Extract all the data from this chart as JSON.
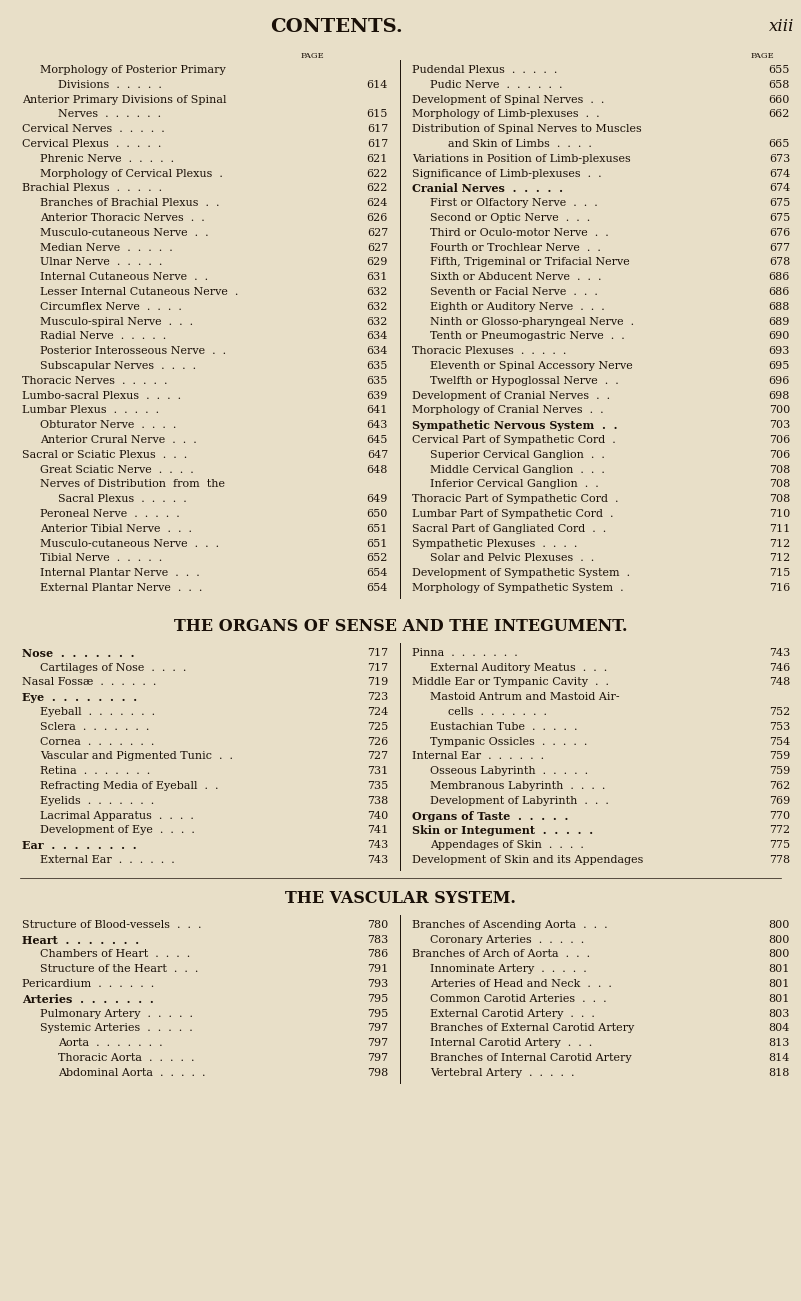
{
  "bg_color": "#e8dfc8",
  "text_color": "#1a1008",
  "title": "CONTENTS.",
  "page_num": "xiii",
  "figsize": [
    8.01,
    13.01
  ],
  "dpi": 100,
  "left_col": [
    {
      "text": "Morphology of Posterior Primary",
      "indent": 1,
      "bold": false,
      "page": null
    },
    {
      "text": "Divisions  .  .  .  .  .",
      "indent": 2,
      "bold": false,
      "page": "614"
    },
    {
      "text": "Anterior Primary Divisions of Spinal",
      "indent": 0,
      "bold": false,
      "page": null
    },
    {
      "text": "Nerves  .  .  .  .  .  .",
      "indent": 2,
      "bold": false,
      "page": "615"
    },
    {
      "text": "Cervical Nerves  .  .  .  .  .",
      "indent": 0,
      "bold": false,
      "page": "617"
    },
    {
      "text": "Cervical Plexus  .  .  .  .  .",
      "indent": 0,
      "bold": false,
      "page": "617"
    },
    {
      "text": "Phrenic Nerve  .  .  .  .  .",
      "indent": 1,
      "bold": false,
      "page": "621"
    },
    {
      "text": "Morphology of Cervical Plexus  .",
      "indent": 1,
      "bold": false,
      "page": "622"
    },
    {
      "text": "Brachial Plexus  .  .  .  .  .",
      "indent": 0,
      "bold": false,
      "page": "622"
    },
    {
      "text": "Branches of Brachial Plexus  .  .",
      "indent": 1,
      "bold": false,
      "page": "624"
    },
    {
      "text": "Anterior Thoracic Nerves  .  .",
      "indent": 1,
      "bold": false,
      "page": "626"
    },
    {
      "text": "Musculo-cutaneous Nerve  .  .",
      "indent": 1,
      "bold": false,
      "page": "627"
    },
    {
      "text": "Median Nerve  .  .  .  .  .",
      "indent": 1,
      "bold": false,
      "page": "627"
    },
    {
      "text": "Ulnar Nerve  .  .  .  .  .",
      "indent": 1,
      "bold": false,
      "page": "629"
    },
    {
      "text": "Internal Cutaneous Nerve  .  .",
      "indent": 1,
      "bold": false,
      "page": "631"
    },
    {
      "text": "Lesser Internal Cutaneous Nerve  .",
      "indent": 1,
      "bold": false,
      "page": "632"
    },
    {
      "text": "Circumflex Nerve  .  .  .  .",
      "indent": 1,
      "bold": false,
      "page": "632"
    },
    {
      "text": "Musculo-spiral Nerve  .  .  .",
      "indent": 1,
      "bold": false,
      "page": "632"
    },
    {
      "text": "Radial Nerve  .  .  .  .  .",
      "indent": 1,
      "bold": false,
      "page": "634"
    },
    {
      "text": "Posterior Interosseous Nerve  .  .",
      "indent": 1,
      "bold": false,
      "page": "634"
    },
    {
      "text": "Subscapular Nerves  .  .  .  .",
      "indent": 1,
      "bold": false,
      "page": "635"
    },
    {
      "text": "Thoracic Nerves  .  .  .  .  .",
      "indent": 0,
      "bold": false,
      "page": "635"
    },
    {
      "text": "Lumbo-sacral Plexus  .  .  .  .",
      "indent": 0,
      "bold": false,
      "page": "639"
    },
    {
      "text": "Lumbar Plexus  .  .  .  .  .",
      "indent": 0,
      "bold": false,
      "page": "641"
    },
    {
      "text": "Obturator Nerve  .  .  .  .",
      "indent": 1,
      "bold": false,
      "page": "643"
    },
    {
      "text": "Anterior Crural Nerve  .  .  .",
      "indent": 1,
      "bold": false,
      "page": "645"
    },
    {
      "text": "Sacral or Sciatic Plexus  .  .  .",
      "indent": 0,
      "bold": false,
      "page": "647"
    },
    {
      "text": "Great Sciatic Nerve  .  .  .  .",
      "indent": 1,
      "bold": false,
      "page": "648"
    },
    {
      "text": "Nerves of Distribution  from  the",
      "indent": 1,
      "bold": false,
      "page": null
    },
    {
      "text": "Sacral Plexus  .  .  .  .  .",
      "indent": 2,
      "bold": false,
      "page": "649"
    },
    {
      "text": "Peroneal Nerve  .  .  .  .  .",
      "indent": 1,
      "bold": false,
      "page": "650"
    },
    {
      "text": "Anterior Tibial Nerve  .  .  .",
      "indent": 1,
      "bold": false,
      "page": "651"
    },
    {
      "text": "Musculo-cutaneous Nerve  .  .  .",
      "indent": 1,
      "bold": false,
      "page": "651"
    },
    {
      "text": "Tibial Nerve  .  .  .  .  .",
      "indent": 1,
      "bold": false,
      "page": "652"
    },
    {
      "text": "Internal Plantar Nerve  .  .  .",
      "indent": 1,
      "bold": false,
      "page": "654"
    },
    {
      "text": "External Plantar Nerve  .  .  .",
      "indent": 1,
      "bold": false,
      "page": "654"
    }
  ],
  "right_col": [
    {
      "text": "Pudendal Plexus  .  .  .  .  .",
      "indent": 0,
      "bold": false,
      "page": "655"
    },
    {
      "text": "Pudic Nerve  .  .  .  .  .  .",
      "indent": 1,
      "bold": false,
      "page": "658"
    },
    {
      "text": "Development of Spinal Nerves  .  .",
      "indent": 0,
      "bold": false,
      "page": "660"
    },
    {
      "text": "Morphology of Limb-plexuses  .  .",
      "indent": 0,
      "bold": false,
      "page": "662"
    },
    {
      "text": "Distribution of Spinal Nerves to Muscles",
      "indent": 0,
      "bold": false,
      "page": null
    },
    {
      "text": "and Skin of Limbs  .  .  .  .",
      "indent": 2,
      "bold": false,
      "page": "665"
    },
    {
      "text": "Variations in Position of Limb-plexuses",
      "indent": 0,
      "bold": false,
      "page": "673"
    },
    {
      "text": "Significance of Limb-plexuses  .  .",
      "indent": 0,
      "bold": false,
      "page": "674"
    },
    {
      "text": "Cranial Nerves  .  .  .  .  .",
      "indent": 0,
      "bold": true,
      "page": "674",
      "smallcaps": true
    },
    {
      "text": "First or Olfactory Nerve  .  .  .",
      "indent": 1,
      "bold": false,
      "page": "675"
    },
    {
      "text": "Second or Optic Nerve  .  .  .",
      "indent": 1,
      "bold": false,
      "page": "675"
    },
    {
      "text": "Third or Oculo-motor Nerve  .  .",
      "indent": 1,
      "bold": false,
      "page": "676"
    },
    {
      "text": "Fourth or Trochlear Nerve  .  .",
      "indent": 1,
      "bold": false,
      "page": "677"
    },
    {
      "text": "Fifth, Trigeminal or Trifacial Nerve",
      "indent": 1,
      "bold": false,
      "page": "678"
    },
    {
      "text": "Sixth or Abducent Nerve  .  .  .",
      "indent": 1,
      "bold": false,
      "page": "686"
    },
    {
      "text": "Seventh or Facial Nerve  .  .  .",
      "indent": 1,
      "bold": false,
      "page": "686"
    },
    {
      "text": "Eighth or Auditory Nerve  .  .  .",
      "indent": 1,
      "bold": false,
      "page": "688"
    },
    {
      "text": "Ninth or Glosso-pharyngeal Nerve  .",
      "indent": 1,
      "bold": false,
      "page": "689"
    },
    {
      "text": "Tenth or Pneumogastric Nerve  .  .",
      "indent": 1,
      "bold": false,
      "page": "690"
    },
    {
      "text": "Thoracic Plexuses  .  .  .  .  .",
      "indent": 0,
      "bold": false,
      "page": "693"
    },
    {
      "text": "Eleventh or Spinal Accessory Nerve",
      "indent": 1,
      "bold": false,
      "page": "695"
    },
    {
      "text": "Twelfth or Hypoglossal Nerve  .  .",
      "indent": 1,
      "bold": false,
      "page": "696"
    },
    {
      "text": "Development of Cranial Nerves  .  .",
      "indent": 0,
      "bold": false,
      "page": "698"
    },
    {
      "text": "Morphology of Cranial Nerves  .  .",
      "indent": 0,
      "bold": false,
      "page": "700"
    },
    {
      "text": "Sympathetic Nervous System  .  .",
      "indent": 0,
      "bold": true,
      "page": "703",
      "smallcaps": true
    },
    {
      "text": "Cervical Part of Sympathetic Cord  .",
      "indent": 0,
      "bold": false,
      "page": "706"
    },
    {
      "text": "Superior Cervical Ganglion  .  .",
      "indent": 1,
      "bold": false,
      "page": "706"
    },
    {
      "text": "Middle Cervical Ganglion  .  .  .",
      "indent": 1,
      "bold": false,
      "page": "708"
    },
    {
      "text": "Inferior Cervical Ganglion  .  .",
      "indent": 1,
      "bold": false,
      "page": "708"
    },
    {
      "text": "Thoracic Part of Sympathetic Cord  .",
      "indent": 0,
      "bold": false,
      "page": "708"
    },
    {
      "text": "Lumbar Part of Sympathetic Cord  .",
      "indent": 0,
      "bold": false,
      "page": "710"
    },
    {
      "text": "Sacral Part of Gangliated Cord  .  .",
      "indent": 0,
      "bold": false,
      "page": "711"
    },
    {
      "text": "Sympathetic Plexuses  .  .  .  .",
      "indent": 0,
      "bold": false,
      "page": "712"
    },
    {
      "text": "Solar and Pelvic Plexuses  .  .",
      "indent": 1,
      "bold": false,
      "page": "712"
    },
    {
      "text": "Development of Sympathetic System  .",
      "indent": 0,
      "bold": false,
      "page": "715"
    },
    {
      "text": "Morphology of Sympathetic System  .",
      "indent": 0,
      "bold": false,
      "page": "716"
    }
  ],
  "section2_title": "THE ORGANS OF SENSE AND THE INTEGUMENT.",
  "section2_left": [
    {
      "text": "Nose  .  .  .  .  .  .  .",
      "indent": 0,
      "bold": true,
      "page": "717",
      "smallcaps": true
    },
    {
      "text": "Cartilages of Nose  .  .  .  .",
      "indent": 1,
      "bold": false,
      "page": "717"
    },
    {
      "text": "Nasal Fossæ  .  .  .  .  .  .",
      "indent": 0,
      "bold": false,
      "page": "719"
    },
    {
      "text": "Eye  .  .  .  .  .  .  .  .",
      "indent": 0,
      "bold": true,
      "page": "723",
      "smallcaps": true
    },
    {
      "text": "Eyeball  .  .  .  .  .  .  .",
      "indent": 1,
      "bold": false,
      "page": "724"
    },
    {
      "text": "Sclera  .  .  .  .  .  .  .",
      "indent": 1,
      "bold": false,
      "page": "725"
    },
    {
      "text": "Cornea  .  .  .  .  .  .  .",
      "indent": 1,
      "bold": false,
      "page": "726"
    },
    {
      "text": "Vascular and Pigmented Tunic  .  .",
      "indent": 1,
      "bold": false,
      "page": "727"
    },
    {
      "text": "Retina  .  .  .  .  .  .  .",
      "indent": 1,
      "bold": false,
      "page": "731"
    },
    {
      "text": "Refracting Media of Eyeball  .  .",
      "indent": 1,
      "bold": false,
      "page": "735"
    },
    {
      "text": "Eyelids  .  .  .  .  .  .  .",
      "indent": 1,
      "bold": false,
      "page": "738"
    },
    {
      "text": "Lacrimal Apparatus  .  .  .  .",
      "indent": 1,
      "bold": false,
      "page": "740"
    },
    {
      "text": "Development of Eye  .  .  .  .",
      "indent": 1,
      "bold": false,
      "page": "741"
    },
    {
      "text": "Ear  .  .  .  .  .  .  .  .",
      "indent": 0,
      "bold": true,
      "page": "743",
      "smallcaps": true
    },
    {
      "text": "External Ear  .  .  .  .  .  .",
      "indent": 1,
      "bold": false,
      "page": "743"
    }
  ],
  "section2_right": [
    {
      "text": "Pinna  .  .  .  .  .  .  .",
      "indent": 0,
      "bold": false,
      "page": "743"
    },
    {
      "text": "External Auditory Meatus  .  .  .",
      "indent": 1,
      "bold": false,
      "page": "746"
    },
    {
      "text": "Middle Ear or Tympanic Cavity  .  .",
      "indent": 0,
      "bold": false,
      "page": "748"
    },
    {
      "text": "Mastoid Antrum and Mastoid Air-",
      "indent": 1,
      "bold": false,
      "page": null
    },
    {
      "text": "cells  .  .  .  .  .  .  .",
      "indent": 2,
      "bold": false,
      "page": "752"
    },
    {
      "text": "Eustachian Tube  .  .  .  .  .",
      "indent": 1,
      "bold": false,
      "page": "753"
    },
    {
      "text": "Tympanic Ossicles  .  .  .  .  .",
      "indent": 1,
      "bold": false,
      "page": "754"
    },
    {
      "text": "Internal Ear  .  .  .  .  .  .",
      "indent": 0,
      "bold": false,
      "page": "759"
    },
    {
      "text": "Osseous Labyrinth  .  .  .  .  .",
      "indent": 1,
      "bold": false,
      "page": "759"
    },
    {
      "text": "Membranous Labyrinth  .  .  .  .",
      "indent": 1,
      "bold": false,
      "page": "762"
    },
    {
      "text": "Development of Labyrinth  .  .  .",
      "indent": 1,
      "bold": false,
      "page": "769"
    },
    {
      "text": "Organs of Taste  .  .  .  .  .",
      "indent": 0,
      "bold": true,
      "page": "770",
      "smallcaps": true
    },
    {
      "text": "Skin or Integument  .  .  .  .  .",
      "indent": 0,
      "bold": true,
      "page": "772",
      "smallcaps": true
    },
    {
      "text": "Appendages of Skin  .  .  .  .",
      "indent": 1,
      "bold": false,
      "page": "775"
    },
    {
      "text": "Development of Skin and its Appendages",
      "indent": 0,
      "bold": false,
      "page": "778"
    }
  ],
  "section3_title": "THE VASCULAR SYSTEM.",
  "section3_left": [
    {
      "text": "Structure of Blood-vessels  .  .  .",
      "indent": 0,
      "bold": false,
      "page": "780"
    },
    {
      "text": "Heart  .  .  .  .  .  .  .",
      "indent": 0,
      "bold": true,
      "page": "783",
      "smallcaps": true
    },
    {
      "text": "Chambers of Heart  .  .  .  .",
      "indent": 1,
      "bold": false,
      "page": "786"
    },
    {
      "text": "Structure of the Heart  .  .  .",
      "indent": 1,
      "bold": false,
      "page": "791"
    },
    {
      "text": "Pericardium  .  .  .  .  .  .",
      "indent": 0,
      "bold": false,
      "page": "793"
    },
    {
      "text": "Arteries  .  .  .  .  .  .  .",
      "indent": 0,
      "bold": true,
      "page": "795",
      "smallcaps": true
    },
    {
      "text": "Pulmonary Artery  .  .  .  .  .",
      "indent": 1,
      "bold": false,
      "page": "795"
    },
    {
      "text": "Systemic Arteries  .  .  .  .  .",
      "indent": 1,
      "bold": false,
      "page": "797"
    },
    {
      "text": "Aorta  .  .  .  .  .  .  .",
      "indent": 2,
      "bold": false,
      "page": "797"
    },
    {
      "text": "Thoracic Aorta  .  .  .  .  .",
      "indent": 2,
      "bold": false,
      "page": "797"
    },
    {
      "text": "Abdominal Aorta  .  .  .  .  .",
      "indent": 2,
      "bold": false,
      "page": "798"
    }
  ],
  "section3_right": [
    {
      "text": "Branches of Ascending Aorta  .  .  .",
      "indent": 0,
      "bold": false,
      "page": "800"
    },
    {
      "text": "Coronary Arteries  .  .  .  .  .",
      "indent": 1,
      "bold": false,
      "page": "800"
    },
    {
      "text": "Branches of Arch of Aorta  .  .  .",
      "indent": 0,
      "bold": false,
      "page": "800"
    },
    {
      "text": "Innominate Artery  .  .  .  .  .",
      "indent": 1,
      "bold": false,
      "page": "801"
    },
    {
      "text": "Arteries of Head and Neck  .  .  .",
      "indent": 1,
      "bold": false,
      "page": "801"
    },
    {
      "text": "Common Carotid Arteries  .  .  .",
      "indent": 1,
      "bold": false,
      "page": "801"
    },
    {
      "text": "External Carotid Artery  .  .  .",
      "indent": 1,
      "bold": false,
      "page": "803"
    },
    {
      "text": "Branches of External Carotid Artery",
      "indent": 1,
      "bold": false,
      "page": "804"
    },
    {
      "text": "Internal Carotid Artery  .  .  .",
      "indent": 1,
      "bold": false,
      "page": "813"
    },
    {
      "text": "Branches of Internal Carotid Artery",
      "indent": 1,
      "bold": false,
      "page": "814"
    },
    {
      "text": "Vertebral Artery  .  .  .  .  .",
      "indent": 1,
      "bold": false,
      "page": "818"
    }
  ]
}
